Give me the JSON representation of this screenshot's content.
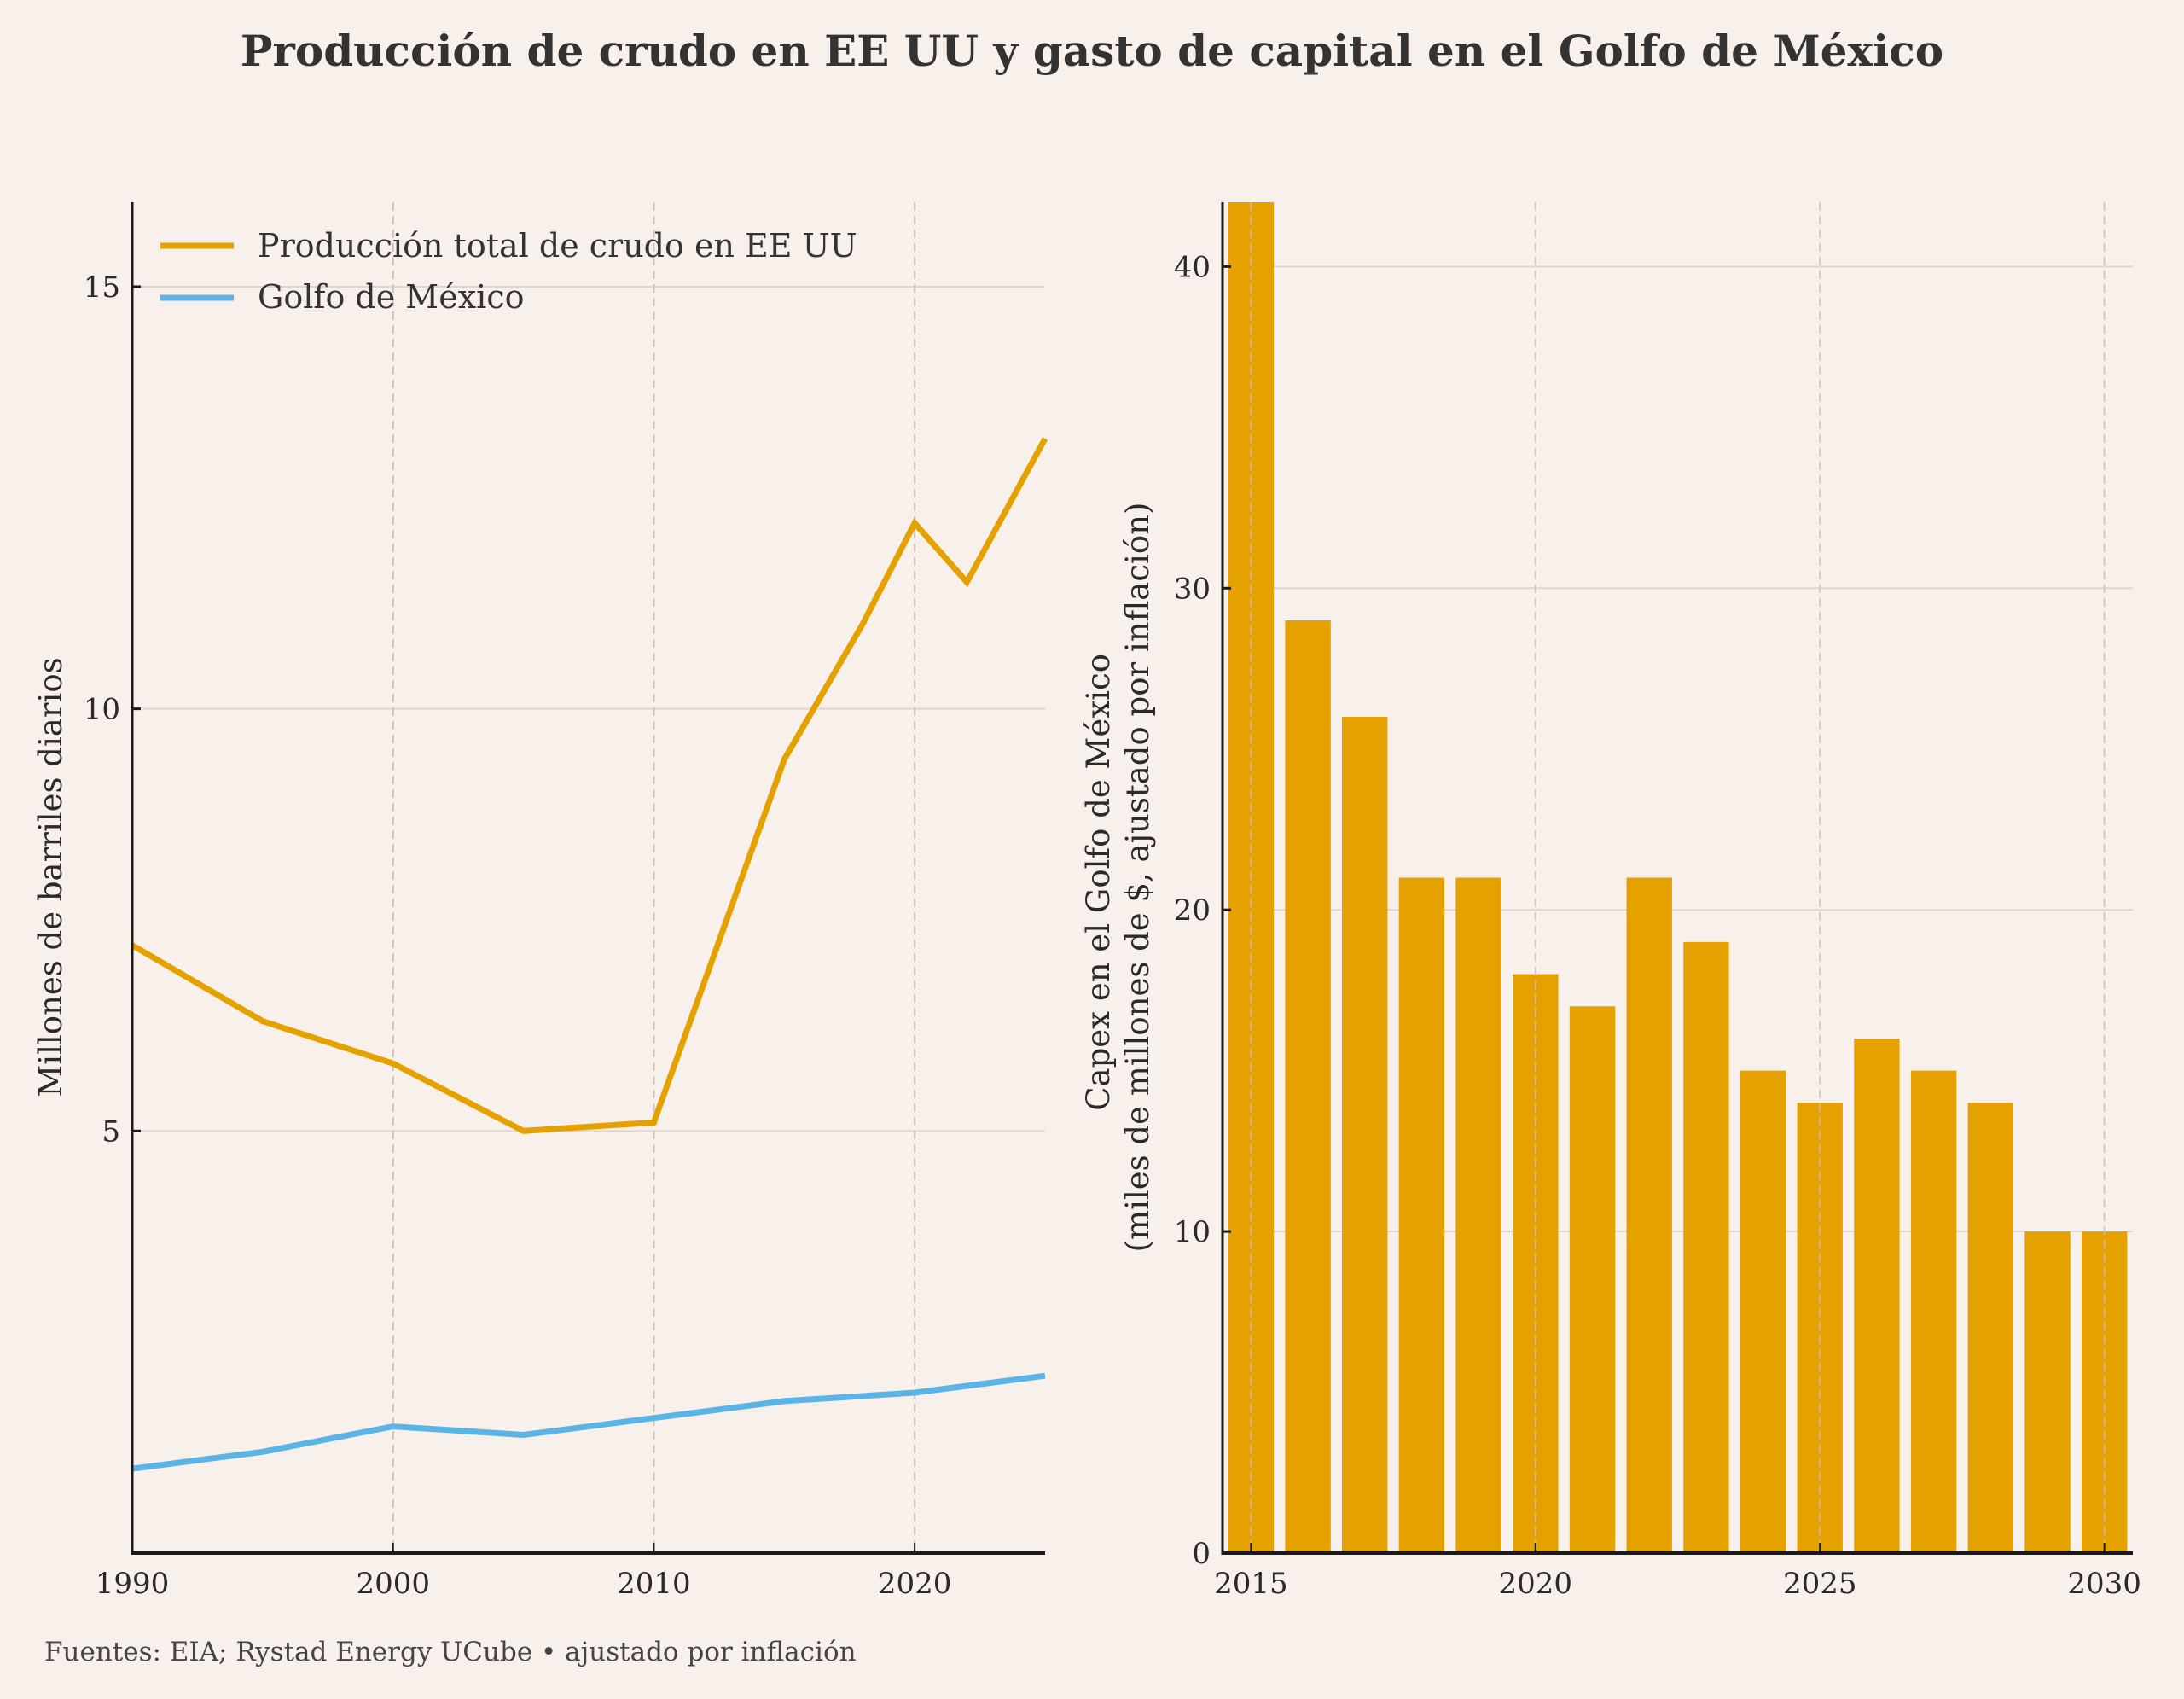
{
  "title": "Producción de crudo en EE UU y gasto de capital en el Golfo de México",
  "footer": "Fuentes: EIA; Rystad Energy UCube • ajustado por inflación",
  "colors": {
    "background": "#f8f0ea",
    "oil": "#e5a100",
    "gulf": "#5ab4e6",
    "bar": "#e5a100",
    "axis": "#1a1a1a",
    "grid_h": "#ddd6d0",
    "grid_v": "#c8c2bd"
  },
  "chart_data": [
    {
      "type": "line",
      "title": "",
      "xlabel": "",
      "ylabel": "Millones de barriles diarios",
      "xlim": [
        1990,
        2025
      ],
      "ylim": [
        0,
        16
      ],
      "xticks": [
        1990,
        2000,
        2010,
        2020
      ],
      "xtick_labels": [
        "1990",
        "2000",
        "2010",
        "2020"
      ],
      "yticks": [
        5,
        10,
        15
      ],
      "ytick_labels": [
        "5",
        "10",
        "15"
      ],
      "grid": "horizontal solid at y-ticks, vertical dashed at x-ticks",
      "legend_position": "top-left",
      "series": [
        {
          "name": "Producción total de crudo en EE UU",
          "color": "#e5a100",
          "x": [
            1990,
            1995,
            2000,
            2005,
            2010,
            2015,
            2018,
            2020,
            2022,
            2025
          ],
          "values": [
            7.2,
            6.3,
            5.8,
            5.0,
            5.1,
            9.4,
            11.0,
            12.2,
            11.5,
            13.2
          ]
        },
        {
          "name": "Golfo de México",
          "color": "#5ab4e6",
          "x": [
            1990,
            1995,
            2000,
            2005,
            2010,
            2015,
            2020,
            2025
          ],
          "values": [
            1.0,
            1.2,
            1.5,
            1.4,
            1.6,
            1.8,
            1.9,
            2.1
          ]
        }
      ]
    },
    {
      "type": "bar",
      "title": "",
      "xlabel": "",
      "ylabel": "Capex en el Golfo de México\n(miles de millones de $, ajustado por inflación)",
      "ylabel_lines": [
        "Capex en el Golfo de México",
        "(miles de millones de $, ajustado por inflación)"
      ],
      "xlim": [
        2014.5,
        2030.5
      ],
      "ylim": [
        0,
        42
      ],
      "xticks": [
        2015,
        2020,
        2025,
        2030
      ],
      "xtick_labels": [
        "2015",
        "2020",
        "2025",
        "2030"
      ],
      "yticks": [
        0,
        10,
        20,
        30,
        40
      ],
      "ytick_labels": [
        "0",
        "10",
        "20",
        "30",
        "40"
      ],
      "grid": "horizontal solid at y-ticks, vertical dashed at x-ticks",
      "categories": [
        2015,
        2016,
        2017,
        2018,
        2019,
        2020,
        2021,
        2022,
        2023,
        2024,
        2025,
        2026,
        2027,
        2028,
        2029,
        2030
      ],
      "values": [
        42,
        29,
        26,
        21,
        21,
        18,
        17,
        21,
        19,
        15,
        14,
        16,
        15,
        14,
        10,
        10
      ],
      "notes": "2015 bar is clipped at the top of the axis (value ≥ 42)"
    }
  ]
}
